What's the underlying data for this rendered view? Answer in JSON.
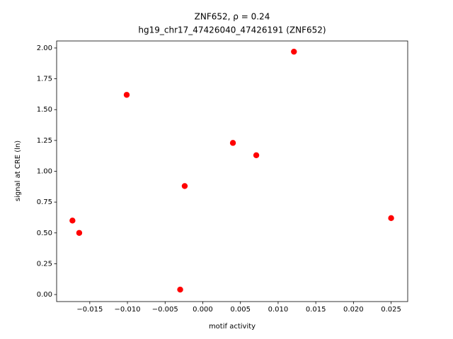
{
  "chart_data": {
    "type": "scatter",
    "title": [
      "ZNF652, ρ = 0.24",
      "hg19_chr17_47426040_47426191 (ZNF652)"
    ],
    "x_label": "motif activity",
    "y_label": "signal at CRE (ln)",
    "color": "#ff0000",
    "x": [
      -0.0173,
      -0.0164,
      -0.0101,
      -0.003,
      -0.0024,
      0.004,
      0.0071,
      0.0121,
      0.025
    ],
    "values": [
      0.6,
      0.5,
      1.62,
      0.04,
      0.88,
      1.23,
      1.13,
      1.97,
      0.62
    ],
    "xlim": [
      -0.0194,
      0.0272
    ],
    "ylim": [
      -0.057,
      2.057
    ],
    "xticks": [
      {
        "value": -0.015,
        "label": "−0.015"
      },
      {
        "value": -0.01,
        "label": "−0.010"
      },
      {
        "value": -0.005,
        "label": "−0.005"
      },
      {
        "value": 0,
        "label": "0.000"
      },
      {
        "value": 0.005,
        "label": "0.005"
      },
      {
        "value": 0.01,
        "label": "0.010"
      },
      {
        "value": 0.015,
        "label": "0.015"
      },
      {
        "value": 0.02,
        "label": "0.020"
      },
      {
        "value": 0.025,
        "label": "0.025"
      }
    ],
    "yticks": [
      {
        "value": 0,
        "label": "0.00"
      },
      {
        "value": 0.25,
        "label": "0.25"
      },
      {
        "value": 0.5,
        "label": "0.50"
      },
      {
        "value": 0.75,
        "label": "0.75"
      },
      {
        "value": 1.0,
        "label": "1.00"
      },
      {
        "value": 1.25,
        "label": "1.25"
      },
      {
        "value": 1.5,
        "label": "1.50"
      },
      {
        "value": 1.75,
        "label": "1.75"
      },
      {
        "value": 2.0,
        "label": "2.00"
      }
    ],
    "grid": false
  }
}
